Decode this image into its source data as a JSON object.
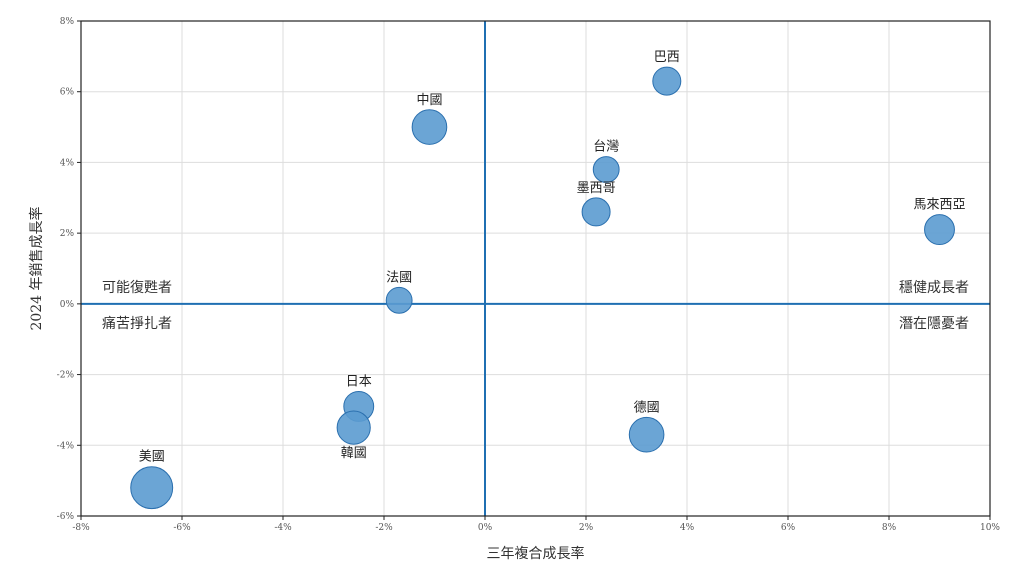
{
  "chart_data": {
    "type": "scatter",
    "xlabel": "三年複合成長率",
    "ylabel": "2024 年銷售成長率",
    "xlim": [
      -8,
      10
    ],
    "ylim": [
      -6,
      8
    ],
    "x_ticks": [
      -8,
      -6,
      -4,
      -2,
      0,
      2,
      4,
      6,
      8,
      10
    ],
    "y_ticks": [
      -6,
      -4,
      -2,
      0,
      2,
      4,
      6,
      8
    ],
    "x_tick_labels": [
      "-8%",
      "-6%",
      "-4%",
      "-2%",
      "0%",
      "2%",
      "4%",
      "6%",
      "8%",
      "10%"
    ],
    "y_tick_labels": [
      "-6%",
      "-4%",
      "-2%",
      "0%",
      "2%",
      "4%",
      "6%",
      "8%"
    ],
    "grid": true,
    "reference_lines": {
      "x": 0,
      "y": 0
    },
    "marker_color": "#5b9bd0",
    "marker_edge_color": "#2a6fae",
    "axis_line_color": "#1f6fb2",
    "points": [
      {
        "label": "巴西",
        "x": 3.6,
        "y": 6.3,
        "size": 4,
        "label_pos": "above"
      },
      {
        "label": "中國",
        "x": -1.1,
        "y": 5.0,
        "size": 8,
        "label_pos": "above"
      },
      {
        "label": "台灣",
        "x": 2.4,
        "y": 3.8,
        "size": 3,
        "label_pos": "above"
      },
      {
        "label": "墨西哥",
        "x": 2.2,
        "y": 2.6,
        "size": 4,
        "label_pos": "above"
      },
      {
        "label": "馬來西亞",
        "x": 9.0,
        "y": 2.1,
        "size": 5,
        "label_pos": "above"
      },
      {
        "label": "法國",
        "x": -1.7,
        "y": 0.1,
        "size": 3,
        "label_pos": "above"
      },
      {
        "label": "日本",
        "x": -2.5,
        "y": -2.9,
        "size": 5,
        "label_pos": "above"
      },
      {
        "label": "韓國",
        "x": -2.6,
        "y": -3.5,
        "size": 7,
        "label_pos": "below"
      },
      {
        "label": "德國",
        "x": 3.2,
        "y": -3.7,
        "size": 8,
        "label_pos": "above"
      },
      {
        "label": "美國",
        "x": -6.6,
        "y": -5.2,
        "size": 14,
        "label_pos": "above"
      }
    ],
    "quadrant_labels": {
      "top_left": "可能復甦者",
      "bottom_left": "痛苦掙扎者",
      "top_right": "穩健成長者",
      "bottom_right": "潛在隱憂者"
    }
  }
}
